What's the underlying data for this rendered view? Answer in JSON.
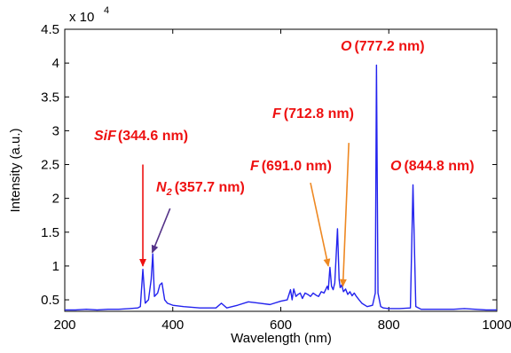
{
  "chart_data": {
    "type": "line",
    "xlabel": "Wavelength (nm)",
    "ylabel": "Intensity (a.u.)",
    "y_exponent_label": "x 10",
    "y_exponent_power": "4",
    "xlim": [
      200,
      1000
    ],
    "ylim": [
      0.33,
      4.5
    ],
    "x_ticks": [
      200,
      400,
      600,
      800,
      1000
    ],
    "x_tick_labels": [
      "200",
      "400",
      "600",
      "800",
      "1000"
    ],
    "y_ticks": [
      0.5,
      1,
      1.5,
      2,
      2.5,
      3,
      3.5,
      4,
      4.5
    ],
    "y_tick_labels": [
      "0.5",
      "1",
      "1.5",
      "2",
      "2.5",
      "3",
      "3.5",
      "4",
      "4.5"
    ],
    "grid": false,
    "line_color": "#2222ee",
    "series": [
      {
        "x": [
          200,
          220,
          240,
          260,
          280,
          300,
          320,
          335,
          340,
          344.6,
          349,
          355,
          360,
          363,
          366,
          372,
          376,
          380,
          385,
          390,
          400,
          420,
          450,
          480,
          490,
          500,
          520,
          540,
          560,
          580,
          600,
          612,
          618,
          621,
          624,
          628,
          632,
          636,
          640,
          645,
          650,
          655,
          660,
          665,
          670,
          675,
          680,
          686,
          688,
          691,
          694,
          697,
          700,
          705,
          708,
          710,
          712.8,
          716,
          720,
          724,
          728,
          732,
          736,
          740,
          745,
          750,
          760,
          770,
          775,
          777.2,
          780,
          785,
          790,
          800,
          820,
          840,
          844.8,
          850,
          860,
          880,
          900,
          920,
          940,
          960,
          980,
          1000
        ],
        "y": [
          0.35,
          0.35,
          0.36,
          0.35,
          0.36,
          0.36,
          0.37,
          0.38,
          0.4,
          0.95,
          0.45,
          0.5,
          0.8,
          1.18,
          0.55,
          0.6,
          0.72,
          0.75,
          0.5,
          0.45,
          0.42,
          0.4,
          0.38,
          0.38,
          0.45,
          0.38,
          0.42,
          0.47,
          0.45,
          0.43,
          0.48,
          0.5,
          0.65,
          0.5,
          0.66,
          0.55,
          0.58,
          0.6,
          0.52,
          0.6,
          0.58,
          0.55,
          0.6,
          0.57,
          0.55,
          0.62,
          0.6,
          0.7,
          0.65,
          0.98,
          0.7,
          0.65,
          0.75,
          1.55,
          0.8,
          0.68,
          0.72,
          0.62,
          0.66,
          0.58,
          0.62,
          0.56,
          0.6,
          0.55,
          0.5,
          0.45,
          0.4,
          0.42,
          0.6,
          3.97,
          0.6,
          0.4,
          0.38,
          0.37,
          0.37,
          0.38,
          2.2,
          0.4,
          0.36,
          0.36,
          0.36,
          0.36,
          0.37,
          0.36,
          0.35,
          0.35
        ]
      }
    ],
    "annotations": [
      {
        "italic": "SiF",
        "text": "(344.6 nm)",
        "color": "#ee1111",
        "arrow_color": "#ee1111",
        "from_x": 344.6,
        "from_y": 2.5,
        "to_x": 344.6,
        "to_y": 1.0
      },
      {
        "italic": "N",
        "subscript": "2",
        "text": "(357.7 nm)",
        "color": "#ee1111",
        "arrow_color": "#553388",
        "from_x": 395,
        "from_y": 1.85,
        "to_x": 362,
        "to_y": 1.2
      },
      {
        "italic": "F",
        "text": "(691.0 nm)",
        "color": "#ee1111",
        "arrow_color": "#ee8822",
        "from_x": 655,
        "from_y": 2.23,
        "to_x": 688,
        "to_y": 1.0
      },
      {
        "italic": "F",
        "text": "(712.8 nm)",
        "color": "#ee1111",
        "arrow_color": "#ee8822",
        "from_x": 726,
        "from_y": 2.82,
        "to_x": 715,
        "to_y": 0.7
      },
      {
        "italic": "O",
        "text": "(777.2 nm)",
        "color": "#ee1111"
      },
      {
        "italic": "O",
        "text": "(844.8 nm)",
        "color": "#ee1111"
      }
    ]
  }
}
